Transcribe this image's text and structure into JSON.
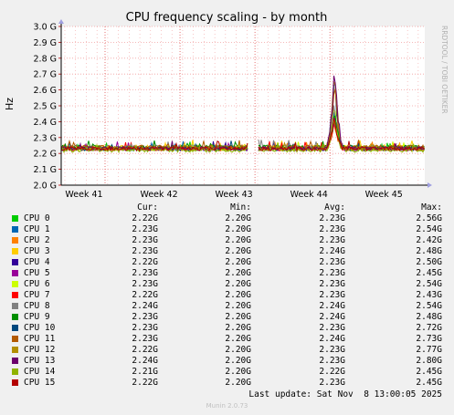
{
  "chart_data": {
    "type": "line",
    "title": "CPU frequency scaling - by month",
    "ylabel": "Hz",
    "ylim": [
      2.0,
      3.0
    ],
    "y_ticks": [
      "2.0 G",
      "2.1 G",
      "2.2 G",
      "2.3 G",
      "2.4 G",
      "2.5 G",
      "2.6 G",
      "2.7 G",
      "2.8 G",
      "2.9 G",
      "3.0 G"
    ],
    "x_ticks": [
      "Week 41",
      "Week 42",
      "Week 43",
      "Week 44",
      "Week 45"
    ],
    "grid": true,
    "watermark": "RRDTOOL / TOBI OETIKER",
    "data_gap": [
      "Week 43",
      "Week 43"
    ],
    "spike_near": "Week 44",
    "columns": [
      "Cur:",
      "Min:",
      "Avg:",
      "Max:"
    ],
    "series": [
      {
        "name": "CPU 0",
        "color": "#00cc00",
        "cur": "2.22G",
        "min": "2.20G",
        "avg": "2.23G",
        "max": "2.56G"
      },
      {
        "name": "CPU 1",
        "color": "#0066b3",
        "cur": "2.23G",
        "min": "2.20G",
        "avg": "2.23G",
        "max": "2.54G"
      },
      {
        "name": "CPU 2",
        "color": "#ff8000",
        "cur": "2.23G",
        "min": "2.20G",
        "avg": "2.23G",
        "max": "2.42G"
      },
      {
        "name": "CPU 3",
        "color": "#ffcc00",
        "cur": "2.23G",
        "min": "2.20G",
        "avg": "2.24G",
        "max": "2.48G"
      },
      {
        "name": "CPU 4",
        "color": "#330099",
        "cur": "2.22G",
        "min": "2.20G",
        "avg": "2.23G",
        "max": "2.50G"
      },
      {
        "name": "CPU 5",
        "color": "#990099",
        "cur": "2.23G",
        "min": "2.20G",
        "avg": "2.23G",
        "max": "2.45G"
      },
      {
        "name": "CPU 6",
        "color": "#ccff00",
        "cur": "2.23G",
        "min": "2.20G",
        "avg": "2.23G",
        "max": "2.54G"
      },
      {
        "name": "CPU 7",
        "color": "#ff0000",
        "cur": "2.22G",
        "min": "2.20G",
        "avg": "2.23G",
        "max": "2.43G"
      },
      {
        "name": "CPU 8",
        "color": "#808080",
        "cur": "2.24G",
        "min": "2.20G",
        "avg": "2.24G",
        "max": "2.54G"
      },
      {
        "name": "CPU 9",
        "color": "#008f00",
        "cur": "2.23G",
        "min": "2.20G",
        "avg": "2.24G",
        "max": "2.48G"
      },
      {
        "name": "CPU 10",
        "color": "#00487d",
        "cur": "2.23G",
        "min": "2.20G",
        "avg": "2.23G",
        "max": "2.72G"
      },
      {
        "name": "CPU 11",
        "color": "#b35a00",
        "cur": "2.23G",
        "min": "2.20G",
        "avg": "2.24G",
        "max": "2.73G"
      },
      {
        "name": "CPU 12",
        "color": "#b38f00",
        "cur": "2.22G",
        "min": "2.20G",
        "avg": "2.23G",
        "max": "2.77G"
      },
      {
        "name": "CPU 13",
        "color": "#6b006b",
        "cur": "2.24G",
        "min": "2.20G",
        "avg": "2.23G",
        "max": "2.80G"
      },
      {
        "name": "CPU 14",
        "color": "#8fb300",
        "cur": "2.21G",
        "min": "2.20G",
        "avg": "2.22G",
        "max": "2.45G"
      },
      {
        "name": "CPU 15",
        "color": "#b30000",
        "cur": "2.22G",
        "min": "2.20G",
        "avg": "2.23G",
        "max": "2.45G"
      }
    ]
  },
  "footer": {
    "last_update": "Last update: Sat Nov  8 13:00:05 2025",
    "version": "Munin 2.0.73"
  }
}
